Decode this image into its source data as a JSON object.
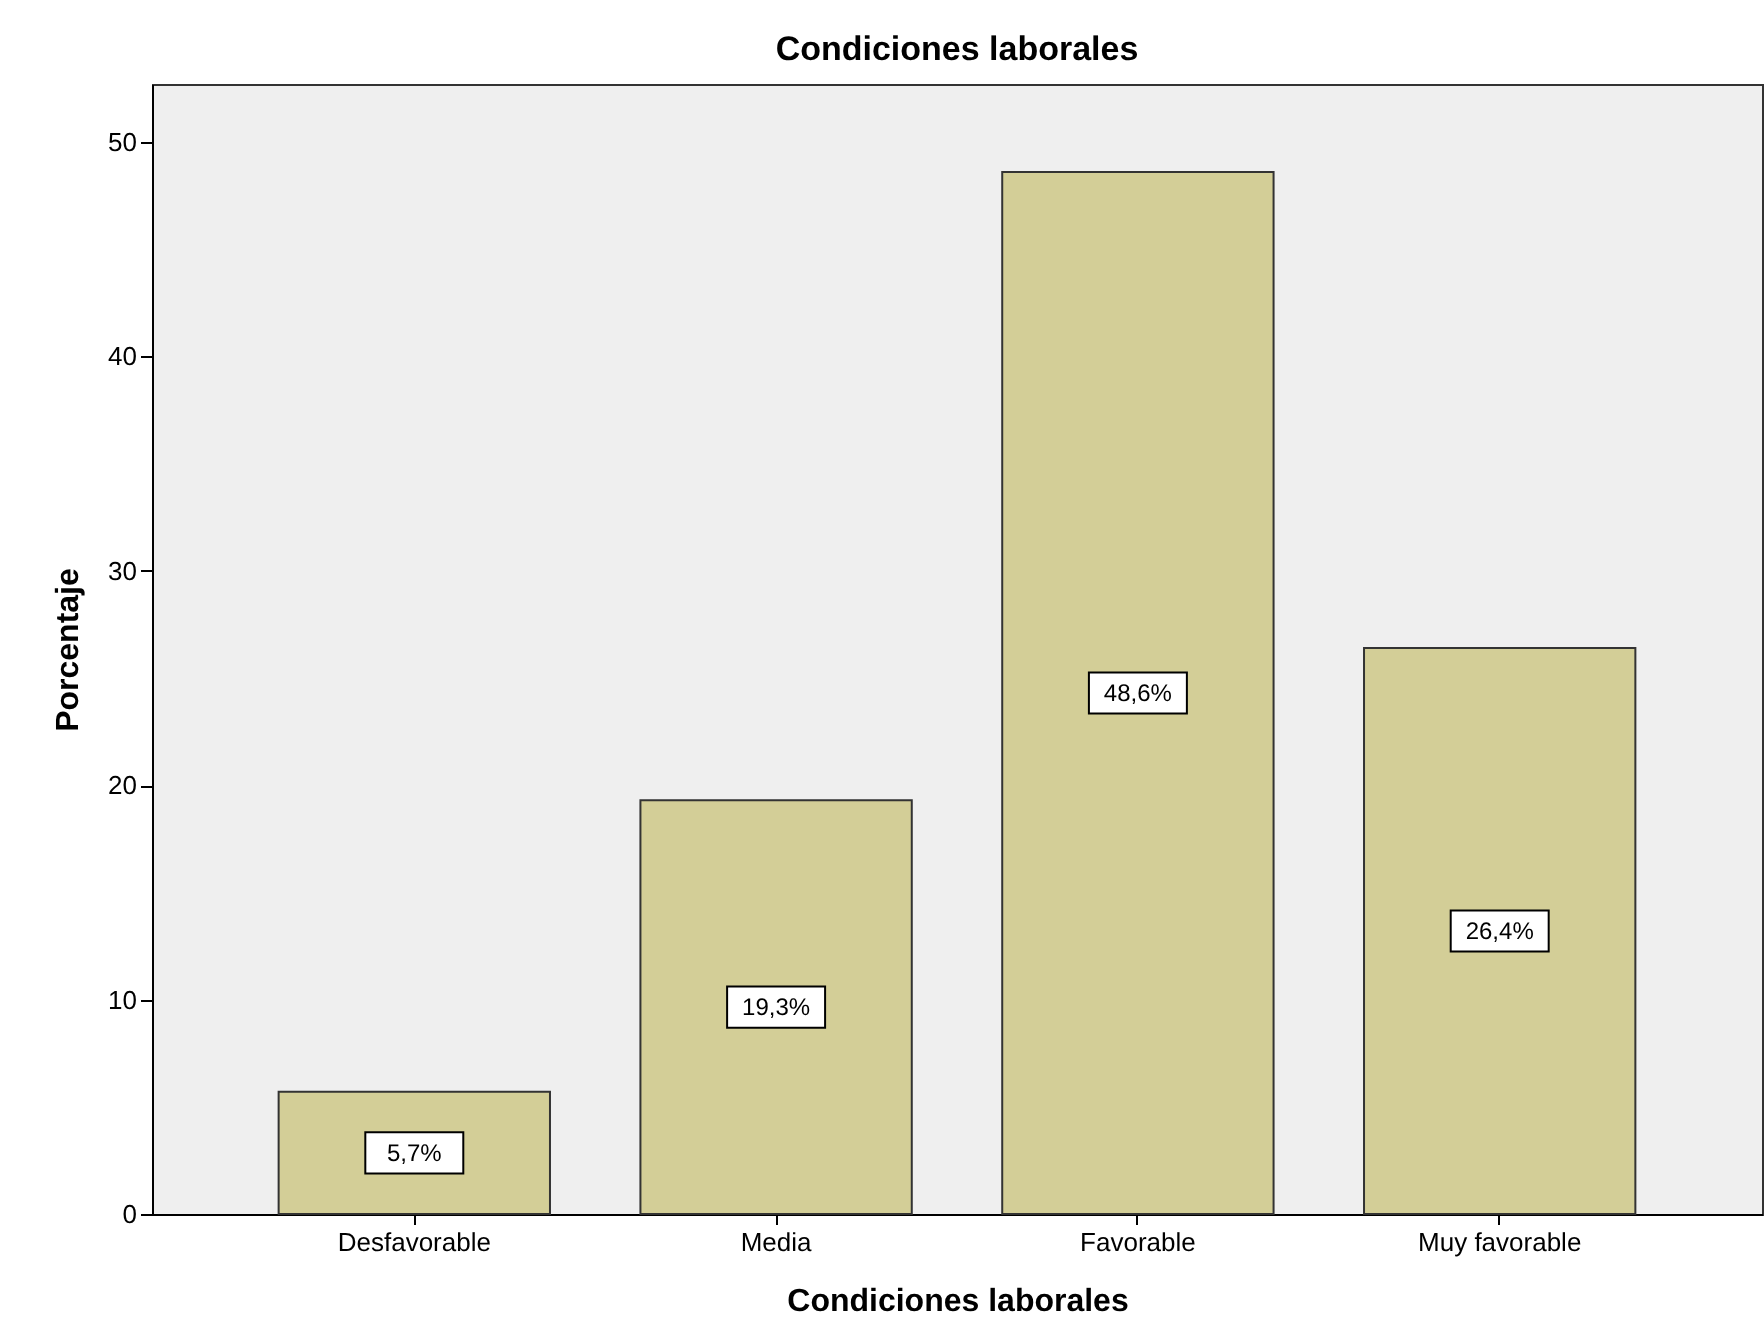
{
  "chart_data": {
    "type": "bar",
    "title": "Condiciones laborales",
    "xlabel": "Condiciones laborales",
    "ylabel": "Porcentaje",
    "categories": [
      "Desfavorable",
      "Media",
      "Favorable",
      "Muy favorable"
    ],
    "values": [
      5.7,
      19.3,
      48.6,
      26.4
    ],
    "value_labels": [
      "5,7%",
      "19,3%",
      "48,6%",
      "26,4%"
    ],
    "color": "#d3ce97",
    "ylim": [
      0,
      52.7
    ],
    "yticks": [
      0,
      10,
      20,
      30,
      40,
      50
    ],
    "grid": false
  }
}
